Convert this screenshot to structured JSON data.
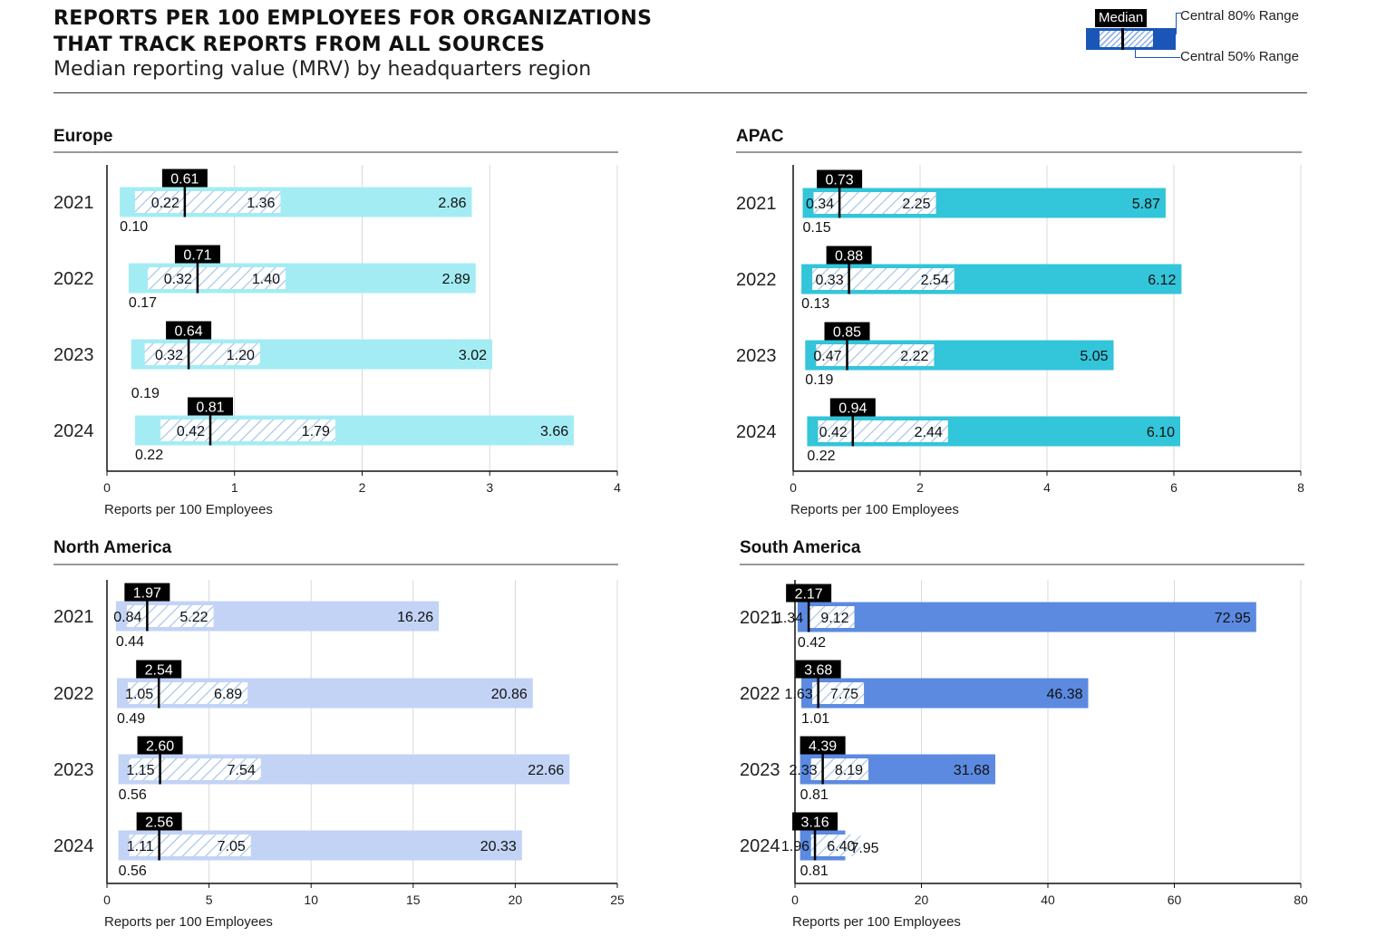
{
  "header": {
    "title_line1": "REPORTS PER 100 EMPLOYEES FOR ORGANIZATIONS",
    "title_line2": "THAT TRACK REPORTS FROM ALL SOURCES",
    "subtitle": "Median reporting value (MRV) by headquarters region"
  },
  "legend": {
    "median_label": "Median",
    "range80_label": "Central 80% Range",
    "range50_label": "Central 50% Range",
    "colors": {
      "range80": "#1a56b8",
      "median": "#000000"
    }
  },
  "chart_data": [
    {
      "type": "range-bar",
      "title": "Europe",
      "xlabel": "Reports per 100 Employees",
      "xlim": [
        0,
        4
      ],
      "ticks": [
        0,
        1,
        2,
        3,
        4
      ],
      "tick_labels": [
        "0",
        "1",
        "2",
        "3",
        "4"
      ],
      "color": "#a4ecf4",
      "label_low": [
        0.15,
        0.15,
        0.25,
        0.15
      ],
      "rows": [
        {
          "year": "2021",
          "p10": 0.1,
          "p25": 0.22,
          "median": 0.61,
          "p75": 1.36,
          "p90": 2.86,
          "p10_label": "0.10",
          "p25_label": "0.22",
          "median_label": "0.61",
          "p75_label": "1.36",
          "p90_label": "2.86"
        },
        {
          "year": "2022",
          "p10": 0.17,
          "p25": 0.32,
          "median": 0.71,
          "p75": 1.4,
          "p90": 2.89,
          "p10_label": "0.17",
          "p25_label": "0.32",
          "median_label": "0.71",
          "p75_label": "1.40",
          "p90_label": "2.89"
        },
        {
          "year": "2023",
          "p10": 0.19,
          "p25": 0.32,
          "median": 0.64,
          "p75": 1.2,
          "p90": 3.02,
          "p10_label": "0.19",
          "p25_label": "0.32",
          "median_label": "0.64",
          "p75_label": "1.20",
          "p90_label": "3.02"
        },
        {
          "year": "2024",
          "p10": 0.22,
          "p25": 0.42,
          "median": 0.81,
          "p75": 1.79,
          "p90": 3.66,
          "p10_label": "0.22",
          "p25_label": "0.42",
          "median_label": "0.81",
          "p75_label": "1.79",
          "p90_label": "3.66"
        }
      ]
    },
    {
      "type": "range-bar",
      "title": "APAC",
      "xlabel": "Reports per 100 Employees",
      "xlim": [
        0,
        8
      ],
      "ticks": [
        0,
        2,
        4,
        6,
        8
      ],
      "tick_labels": [
        "0",
        "2",
        "4",
        "6",
        "8"
      ],
      "color": "#33c5d9",
      "label_low": [
        0.15,
        0.15,
        0.15,
        0.15
      ],
      "rows": [
        {
          "year": "2021",
          "p10": 0.15,
          "p25": 0.34,
          "median": 0.73,
          "p75": 2.25,
          "p90": 5.87,
          "p10_label": "0.15",
          "p25_label": "0.34",
          "median_label": "0.73",
          "p75_label": "2.25",
          "p90_label": "5.87"
        },
        {
          "year": "2022",
          "p10": 0.13,
          "p25": 0.33,
          "median": 0.88,
          "p75": 2.54,
          "p90": 6.12,
          "p10_label": "0.13",
          "p25_label": "0.33",
          "median_label": "0.88",
          "p75_label": "2.54",
          "p90_label": "6.12"
        },
        {
          "year": "2023",
          "p10": 0.19,
          "p25": 0.47,
          "median": 0.85,
          "p75": 2.22,
          "p90": 5.05,
          "p10_label": "0.19",
          "p25_label": "0.47",
          "median_label": "0.85",
          "p75_label": "2.22",
          "p90_label": "5.05"
        },
        {
          "year": "2024",
          "p10": 0.22,
          "p25": 0.42,
          "median": 0.94,
          "p75": 2.44,
          "p90": 6.1,
          "p10_label": "0.22",
          "p25_label": "0.42",
          "median_label": "0.94",
          "p75_label": "2.44",
          "p90_label": "6.10"
        }
      ]
    },
    {
      "type": "range-bar",
      "title": "North America",
      "xlabel": "Reports per 100 Employees",
      "xlim": [
        0,
        25
      ],
      "ticks": [
        0,
        5,
        10,
        15,
        20,
        25
      ],
      "tick_labels": [
        "0",
        "5",
        "10",
        "15",
        "20",
        "25"
      ],
      "color": "#c2d3f5",
      "label_low": [
        0.15,
        0.15,
        0.15,
        0.15
      ],
      "rows": [
        {
          "year": "2021",
          "p10": 0.44,
          "p25": 0.84,
          "median": 1.97,
          "p75": 5.22,
          "p90": 16.26,
          "p10_label": "0.44",
          "p25_label": "0.84",
          "median_label": "1.97",
          "p75_label": "5.22",
          "p90_label": "16.26"
        },
        {
          "year": "2022",
          "p10": 0.49,
          "p25": 1.05,
          "median": 2.54,
          "p75": 6.89,
          "p90": 20.86,
          "p10_label": "0.49",
          "p25_label": "1.05",
          "median_label": "2.54",
          "p75_label": "6.89",
          "p90_label": "20.86"
        },
        {
          "year": "2023",
          "p10": 0.56,
          "p25": 1.15,
          "median": 2.6,
          "p75": 7.54,
          "p90": 22.66,
          "p10_label": "0.56",
          "p25_label": "1.15",
          "median_label": "2.60",
          "p75_label": "7.54",
          "p90_label": "22.66"
        },
        {
          "year": "2024",
          "p10": 0.56,
          "p25": 1.11,
          "median": 2.56,
          "p75": 7.05,
          "p90": 20.33,
          "p10_label": "0.56",
          "p25_label": "1.11",
          "median_label": "2.56",
          "p75_label": "7.05",
          "p90_label": "20.33"
        }
      ]
    },
    {
      "type": "range-bar",
      "title": "South America",
      "xlabel": "Reports per 100 Employees",
      "xlim": [
        0,
        80
      ],
      "ticks": [
        0,
        20,
        40,
        60,
        80
      ],
      "tick_labels": [
        "0",
        "20",
        "40",
        "60",
        "80"
      ],
      "color": "#5b8ae0",
      "label_low": [
        0.15,
        0.15,
        0.15,
        0.15
      ],
      "rows": [
        {
          "year": "2021",
          "p10": 0.42,
          "p25": 1.34,
          "median": 2.17,
          "p75": 9.12,
          "p90": 72.95,
          "p10_label": "0.42",
          "p25_label": "1.34",
          "median_label": "2.17",
          "p75_label": "9.12",
          "p90_label": "72.95"
        },
        {
          "year": "2022",
          "p10": 1.01,
          "p25": 1.63,
          "median": 3.68,
          "p75": 7.75,
          "p90": 46.38,
          "p10_label": "1.01",
          "p25_label": "1.63",
          "median_label": "3.68",
          "p75_label": "7.75",
          "p90_label": "46.38"
        },
        {
          "year": "2023",
          "p10": 0.81,
          "p25": 2.33,
          "median": 4.39,
          "p75": 8.19,
          "p90": 31.68,
          "p10_label": "0.81",
          "p25_label": "2.33",
          "median_label": "4.39",
          "p75_label": "8.19",
          "p90_label": "31.68"
        },
        {
          "year": "2024",
          "p10": 0.81,
          "p25": 1.96,
          "median": 3.16,
          "p75": 6.4,
          "p90": 7.95,
          "p10_label": "0.81",
          "p25_label": "1.96",
          "median_label": "3.16",
          "p75_label": "6.40",
          "p90_label": "7.95"
        }
      ]
    }
  ]
}
